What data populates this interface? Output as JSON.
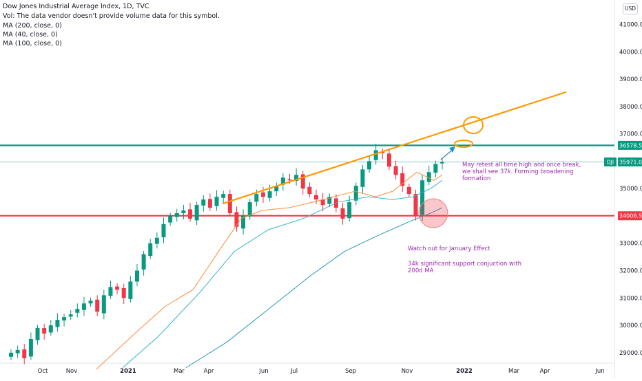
{
  "legend": {
    "title": "Dow Jones Industrial Average Index, 1D, TVC",
    "vol": "Vol: The data vendor doesn't provide volume data for this symbol.",
    "ma200": "MA (200, close, 0)",
    "ma40": "MA (40, close, 0)",
    "ma100": "MA (100, close, 0)"
  },
  "currency": "USD",
  "chart_data": {
    "type": "candlestick",
    "instrument": "Dow Jones Industrial Average Index",
    "timeframe": "1D",
    "x_ticks": [
      "Oct",
      "Nov",
      "2021",
      "Mar",
      "Apr",
      "Jun",
      "Jul",
      "Sep",
      "Nov",
      "2022",
      "Mar",
      "Apr",
      "Jun"
    ],
    "y_ticks": [
      "29000.00",
      "30000.00",
      "31000.00",
      "32000.00",
      "33000.00",
      "34000.00",
      "35000.00",
      "36000.00",
      "37000.00",
      "38000.00",
      "39000.00",
      "40000.00",
      "41000.00"
    ],
    "ylim": [
      28500,
      41600
    ],
    "price_levels": [
      {
        "label": "36578.52",
        "value": 36578.52,
        "color": "#089981"
      },
      {
        "label": "35971.00",
        "value": 35971.0,
        "color": "#089981",
        "symbol": "DJI"
      },
      {
        "label": "34006.54",
        "value": 34006.54,
        "color": "#f23645"
      }
    ],
    "trend_line": {
      "color": "#ff9800",
      "from": [
        "Apr 2021",
        34450
      ],
      "to": [
        "Apr 2022",
        38500
      ]
    },
    "moving_averages": [
      {
        "name": "MA (40, close, 0)",
        "color": "#ff8c3a"
      },
      {
        "name": "MA (100, close, 0)",
        "color": "#35b4c9"
      },
      {
        "name": "MA (200, close, 0)",
        "color": "#2596be"
      }
    ],
    "candles_close_approx": [
      29000,
      29100,
      28800,
      29500,
      29900,
      29700,
      30000,
      30200,
      30300,
      30400,
      30600,
      30800,
      30900,
      30500,
      31100,
      31400,
      31300,
      31000,
      31600,
      32000,
      32600,
      33000,
      33200,
      33700,
      34000,
      34100,
      34200,
      33900,
      34400,
      34600,
      34300,
      34700,
      34800,
      34100,
      33600,
      34000,
      34500,
      34800,
      34700,
      34900,
      35100,
      35400,
      35300,
      35500,
      35000,
      34800,
      34600,
      34400,
      34700,
      34300,
      33900,
      34500,
      35100,
      35700,
      36000,
      36400,
      36300,
      35800,
      35500,
      35100,
      34800,
      34000,
      35300,
      35600,
      35900,
      35971
    ],
    "annotations": [
      "May retest all time high and once break, we shall see 37k. Forming broadening formation",
      "Watch out for January Effect",
      "34k significant support conjuction with 200d MA"
    ]
  }
}
